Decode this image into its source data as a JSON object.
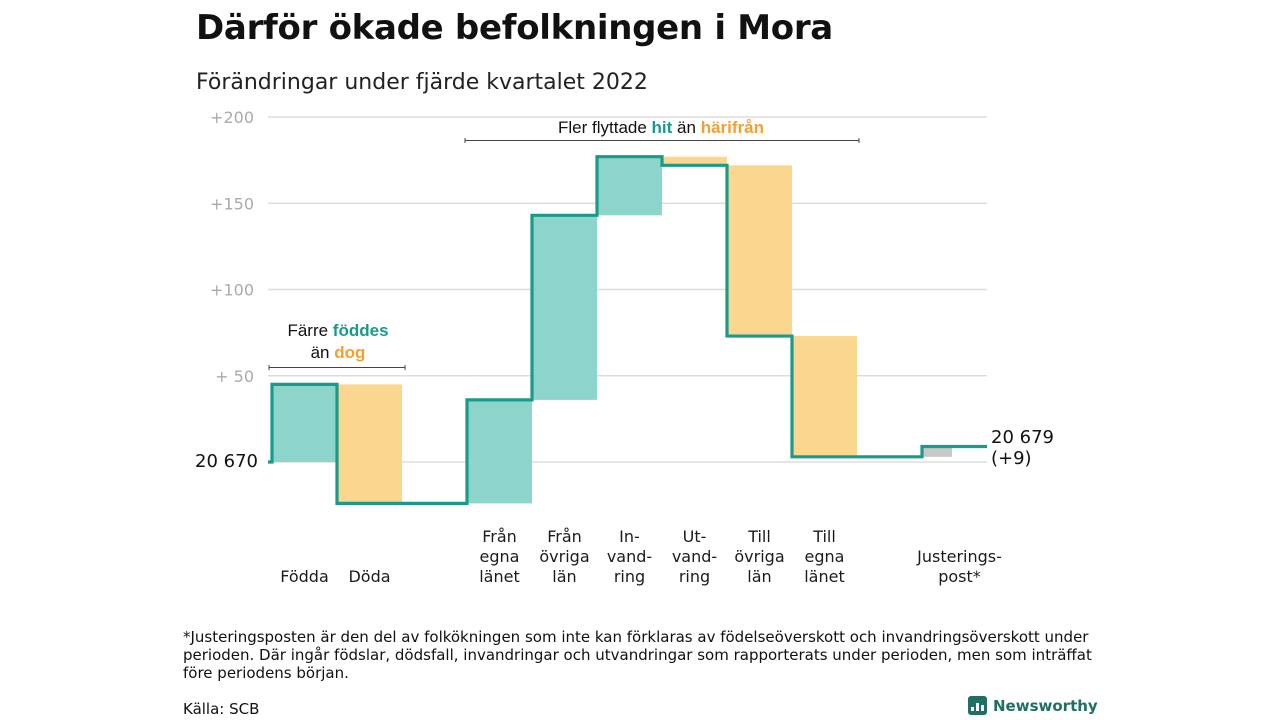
{
  "title": "Därför ökade befolkningen i Mora",
  "subtitle": "Förändringar under fjärde kvartalet 2022",
  "chart_data": {
    "type": "waterfall",
    "base_value": 20670,
    "end_value": 20679,
    "y_ticks": [
      "+200",
      "+150",
      "+100",
      "+ 50"
    ],
    "y_tick_values": [
      200,
      150,
      100,
      50
    ],
    "ylim": [
      -25,
      200
    ],
    "steps": [
      {
        "id": "fodda",
        "lines": [
          "Födda"
        ],
        "change": 45,
        "color": "#8dd5cb"
      },
      {
        "id": "doda",
        "lines": [
          "Döda"
        ],
        "change": -69,
        "color": "#fbd68f"
      },
      {
        "id": "fran-egna",
        "lines": [
          "Från",
          "egna",
          "länet"
        ],
        "change": 60,
        "color": "#8dd5cb"
      },
      {
        "id": "fran-ovriga",
        "lines": [
          "Från",
          "övriga",
          "län"
        ],
        "change": 107,
        "color": "#8dd5cb"
      },
      {
        "id": "invandring",
        "lines": [
          "In-",
          "vand-",
          "ring"
        ],
        "change": 34,
        "color": "#8dd5cb"
      },
      {
        "id": "utvandring",
        "lines": [
          "Ut-",
          "vand-",
          "ring"
        ],
        "change": -5,
        "color": "#fbd68f"
      },
      {
        "id": "till-ovriga",
        "lines": [
          "Till",
          "övriga",
          "län"
        ],
        "change": -99,
        "color": "#fbd68f"
      },
      {
        "id": "till-egna",
        "lines": [
          "Till",
          "egna",
          "länet"
        ],
        "change": -70,
        "color": "#fbd68f"
      },
      {
        "id": "justering",
        "lines": [
          "Justerings-",
          "post*"
        ],
        "change": 6,
        "color": "#c8c8c8"
      }
    ],
    "start_label": "20 670",
    "end_label_lines": [
      "20 679",
      "(+9)"
    ],
    "annotations": {
      "births": {
        "line1_pre": "Färre ",
        "line1_hi": "föddes",
        "line2_pre": "än ",
        "line2_lo": "dog"
      },
      "migration": {
        "pre": "Fler flyttade ",
        "hi": "hit",
        "mid": " än ",
        "lo": "härifrån"
      }
    },
    "colors": {
      "line": "#1a9a8a",
      "increase": "#8dd5cb",
      "decrease": "#fbd68f",
      "adjustment": "#c8c8c8",
      "grid": "#dddddd"
    }
  },
  "footnote": "*Justeringsposten är den del av folkökningen som inte kan förklaras av födelseöverskott och invandringsöverskott under perioden. Där ingår födslar, dödsfall, invandringar och utvandringar som rapporterats under perioden, men som inträffat före periodens början.",
  "source": "Källa: SCB",
  "brand": "Newsworthy"
}
